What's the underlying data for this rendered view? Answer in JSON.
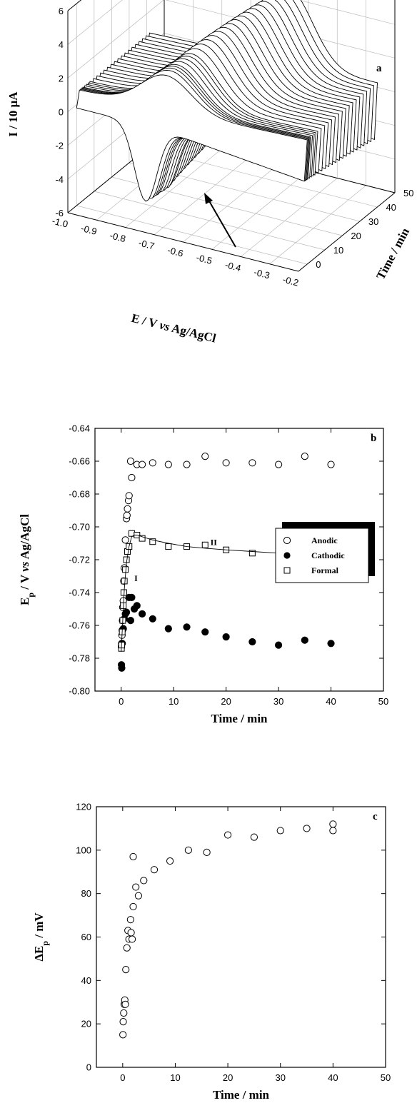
{
  "chart_data": [
    {
      "panel": "a",
      "type": "line",
      "subtype": "3d-waterfall",
      "letter": "a",
      "xlabel_parts": [
        "E / V ",
        "vs",
        " Ag/AgCl"
      ],
      "ylabel": "Time / min",
      "zlabel": "I / 10 µA",
      "x_ticks": [
        "-1.0",
        "-0.9",
        "-0.8",
        "-0.7",
        "-0.6",
        "-0.5",
        "-0.4",
        "-0.3",
        "-0.2"
      ],
      "y_ticks": [
        "0",
        "10",
        "20",
        "30",
        "40",
        "50"
      ],
      "z_ticks": [
        "6",
        "4",
        "2",
        "0",
        "-2",
        "-4",
        "-6"
      ],
      "xlim": [
        -1.0,
        -0.2
      ],
      "ylim": [
        -5,
        50
      ],
      "zlim": [
        -6,
        6
      ],
      "grid": true,
      "annotation": "arrow pointing to cathodic peak region",
      "series_times": [
        0,
        0.5,
        1,
        1.5,
        2,
        3,
        4,
        5,
        6,
        8,
        10,
        12,
        14,
        16,
        18,
        20,
        22,
        24,
        26,
        28,
        30,
        32,
        34,
        36,
        38,
        40
      ]
    },
    {
      "panel": "b",
      "type": "scatter",
      "letter": "b",
      "xlabel": "Time / min",
      "ylabel_parts": [
        "E",
        "p",
        " / V ",
        "vs",
        " Ag/AgCl"
      ],
      "x_ticks": [
        "0",
        "10",
        "20",
        "30",
        "40",
        "50"
      ],
      "y_ticks": [
        "-0.64",
        "-0.66",
        "-0.68",
        "-0.70",
        "-0.72",
        "-0.74",
        "-0.76",
        "-0.78",
        "-0.80"
      ],
      "xlim": [
        -5,
        50
      ],
      "ylim": [
        -0.8,
        -0.64
      ],
      "legend_position": "right",
      "region_labels": [
        {
          "text": "I",
          "x": 2.5,
          "y": -0.733
        },
        {
          "text": "II",
          "x": 17,
          "y": -0.711
        }
      ],
      "series": [
        {
          "name": "Anodic",
          "marker": "open-circle",
          "x": [
            0.05,
            0.1,
            0.15,
            0.2,
            0.25,
            0.3,
            0.4,
            0.5,
            0.6,
            0.8,
            1.0,
            1.1,
            1.2,
            1.4,
            1.5,
            1.8,
            2.0,
            3.0,
            4.0,
            6.0,
            9.0,
            12.5,
            16.0,
            20.0,
            25.0,
            30.0,
            35.0,
            40.0
          ],
          "y": [
            -0.773,
            -0.771,
            -0.766,
            -0.763,
            -0.757,
            -0.749,
            -0.745,
            -0.733,
            -0.725,
            -0.708,
            -0.695,
            -0.693,
            -0.689,
            -0.684,
            -0.681,
            -0.66,
            -0.67,
            -0.662,
            -0.662,
            -0.661,
            -0.662,
            -0.662,
            -0.657,
            -0.661,
            -0.661,
            -0.662,
            -0.657,
            -0.662
          ]
        },
        {
          "name": "Cathodic",
          "marker": "filled-circle",
          "x": [
            0.05,
            0.1,
            0.2,
            0.4,
            0.6,
            0.8,
            1.0,
            1.5,
            1.8,
            2.0,
            2.5,
            3.0,
            4.0,
            6.0,
            9.0,
            12.5,
            16.0,
            20.0,
            25.0,
            30.0,
            35.0,
            40.0
          ],
          "y": [
            -0.784,
            -0.786,
            -0.771,
            -0.762,
            -0.756,
            -0.753,
            -0.752,
            -0.743,
            -0.757,
            -0.743,
            -0.75,
            -0.748,
            -0.753,
            -0.756,
            -0.762,
            -0.761,
            -0.764,
            -0.767,
            -0.77,
            -0.772,
            -0.769,
            -0.771
          ]
        },
        {
          "name": "Formal",
          "marker": "open-square",
          "x": [
            0.05,
            0.1,
            0.2,
            0.3,
            0.4,
            0.5,
            0.6,
            0.8,
            1.0,
            1.2,
            1.5,
            2.0,
            3.0,
            4.0,
            6.0,
            9.0,
            12.5,
            16.0,
            20.0,
            25.0,
            30.0,
            35.0,
            40.0
          ],
          "y": [
            -0.774,
            -0.772,
            -0.764,
            -0.757,
            -0.748,
            -0.74,
            -0.733,
            -0.726,
            -0.72,
            -0.715,
            -0.712,
            -0.704,
            -0.705,
            -0.707,
            -0.709,
            -0.712,
            -0.712,
            -0.711,
            -0.714,
            -0.716,
            -0.717,
            -0.713,
            -0.717
          ]
        },
        {
          "name": "fit",
          "marker": "none",
          "x": [
            0,
            0.3,
            0.6,
            1.0,
            1.5,
            2.0,
            2.5,
            3.0,
            4.0,
            6.0,
            9.0,
            12.5,
            16.0,
            20.0,
            25.0,
            30.0,
            35.0,
            40.0
          ],
          "y": [
            -0.776,
            -0.757,
            -0.738,
            -0.722,
            -0.712,
            -0.706,
            -0.705,
            -0.705,
            -0.706,
            -0.708,
            -0.71,
            -0.712,
            -0.713,
            -0.714,
            -0.715,
            -0.716,
            -0.716,
            -0.716
          ]
        }
      ]
    },
    {
      "panel": "c",
      "type": "scatter",
      "letter": "c",
      "xlabel": "Time / min",
      "ylabel_parts": [
        "ΔE",
        "p",
        " / mV"
      ],
      "x_ticks": [
        "0",
        "10",
        "20",
        "30",
        "40",
        "50"
      ],
      "y_ticks": [
        "0",
        "20",
        "40",
        "60",
        "80",
        "100",
        "120"
      ],
      "xlim": [
        -5,
        50
      ],
      "ylim": [
        0,
        120
      ],
      "series": [
        {
          "name": "",
          "marker": "open-circle",
          "x": [
            0.05,
            0.1,
            0.2,
            0.3,
            0.4,
            0.5,
            0.6,
            0.8,
            1.0,
            1.2,
            1.5,
            1.6,
            1.8,
            2.0,
            2.5,
            3.0,
            4.0,
            6.0,
            9.0,
            12.5,
            16.0,
            20.0,
            25.0,
            30.0,
            35.0,
            40.0
          ],
          "y": [
            15,
            21,
            25,
            29,
            31,
            29,
            45,
            55,
            63,
            59,
            68,
            62,
            59,
            74,
            83,
            79,
            86,
            91,
            95,
            100,
            99,
            107,
            106,
            109,
            110,
            112
          ]
        },
        {
          "name": "",
          "marker": "open-circle",
          "x": [
            2.0,
            40.0
          ],
          "y": [
            97,
            109
          ]
        }
      ]
    }
  ]
}
